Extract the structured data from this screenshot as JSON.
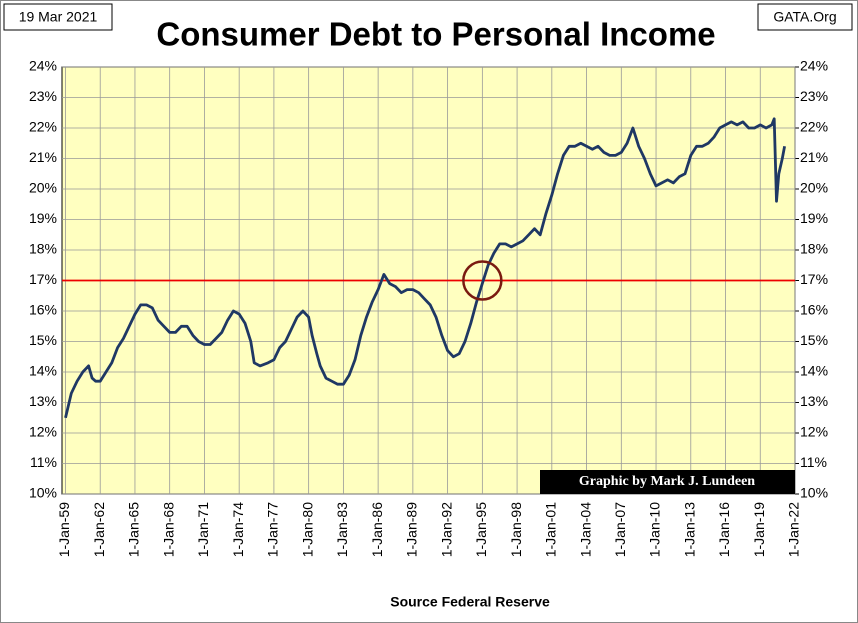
{
  "chart_data": {
    "type": "line",
    "title": "Consumer Debt to Personal Income",
    "date_label": "19 Mar 2021",
    "source_label": "GATA.Org",
    "x_label": "Source Federal Reserve",
    "credit": "Graphic by Mark J. Lundeen",
    "reference_line": {
      "y": 17,
      "color": "#ee0000"
    },
    "highlight_point": {
      "x": 1995,
      "y": 17,
      "color": "#7a1a10"
    },
    "background": "#ffffc0",
    "grid": true,
    "xlim": [
      1958.7,
      2022
    ],
    "xticks": [
      {
        "value": 1959,
        "label": "1-Jan-59"
      },
      {
        "value": 1962,
        "label": "1-Jan-62"
      },
      {
        "value": 1965,
        "label": "1-Jan-65"
      },
      {
        "value": 1968,
        "label": "1-Jan-68"
      },
      {
        "value": 1971,
        "label": "1-Jan-71"
      },
      {
        "value": 1974,
        "label": "1-Jan-74"
      },
      {
        "value": 1977,
        "label": "1-Jan-77"
      },
      {
        "value": 1980,
        "label": "1-Jan-80"
      },
      {
        "value": 1983,
        "label": "1-Jan-83"
      },
      {
        "value": 1986,
        "label": "1-Jan-86"
      },
      {
        "value": 1989,
        "label": "1-Jan-89"
      },
      {
        "value": 1992,
        "label": "1-Jan-92"
      },
      {
        "value": 1995,
        "label": "1-Jan-95"
      },
      {
        "value": 1998,
        "label": "1-Jan-98"
      },
      {
        "value": 2001,
        "label": "1-Jan-01"
      },
      {
        "value": 2004,
        "label": "1-Jan-04"
      },
      {
        "value": 2007,
        "label": "1-Jan-07"
      },
      {
        "value": 2010,
        "label": "1-Jan-10"
      },
      {
        "value": 2013,
        "label": "1-Jan-13"
      },
      {
        "value": 2016,
        "label": "1-Jan-16"
      },
      {
        "value": 2019,
        "label": "1-Jan-19"
      },
      {
        "value": 2022,
        "label": "1-Jan-22"
      }
    ],
    "ylim": [
      10,
      24
    ],
    "yticks": [
      {
        "value": 10,
        "label": "10%"
      },
      {
        "value": 11,
        "label": "11%"
      },
      {
        "value": 12,
        "label": "12%"
      },
      {
        "value": 13,
        "label": "13%"
      },
      {
        "value": 14,
        "label": "14%"
      },
      {
        "value": 15,
        "label": "15%"
      },
      {
        "value": 16,
        "label": "16%"
      },
      {
        "value": 17,
        "label": "17%"
      },
      {
        "value": 18,
        "label": "18%"
      },
      {
        "value": 19,
        "label": "19%"
      },
      {
        "value": 20,
        "label": "20%"
      },
      {
        "value": 21,
        "label": "21%"
      },
      {
        "value": 22,
        "label": "22%"
      },
      {
        "value": 23,
        "label": "23%"
      },
      {
        "value": 24,
        "label": "24%"
      }
    ],
    "y2lim": [
      10,
      24
    ],
    "y2ticks": [
      {
        "value": 10,
        "label": "10%"
      },
      {
        "value": 11,
        "label": "11%"
      },
      {
        "value": 12,
        "label": "12%"
      },
      {
        "value": 13,
        "label": "13%"
      },
      {
        "value": 14,
        "label": "14%"
      },
      {
        "value": 15,
        "label": "15%"
      },
      {
        "value": 16,
        "label": "16%"
      },
      {
        "value": 17,
        "label": "17%"
      },
      {
        "value": 18,
        "label": "18%"
      },
      {
        "value": 19,
        "label": "19%"
      },
      {
        "value": 20,
        "label": "20%"
      },
      {
        "value": 21,
        "label": "21%"
      },
      {
        "value": 22,
        "label": "22%"
      },
      {
        "value": 23,
        "label": "23%"
      },
      {
        "value": 24,
        "label": "24%"
      }
    ],
    "x": [
      1959,
      1959.5,
      1960,
      1960.5,
      1961,
      1961.3,
      1961.6,
      1962,
      1962.5,
      1963,
      1963.5,
      1964,
      1964.5,
      1965,
      1965.5,
      1966,
      1966.5,
      1967,
      1967.5,
      1968,
      1968.5,
      1969,
      1969.5,
      1970,
      1970.5,
      1971,
      1971.5,
      1972,
      1972.5,
      1973,
      1973.5,
      1974,
      1974.5,
      1975,
      1975.3,
      1975.8,
      1976.5,
      1977,
      1977.5,
      1978,
      1978.5,
      1979,
      1979.5,
      1980,
      1980.3,
      1980.7,
      1981,
      1981.5,
      1982,
      1982.5,
      1983,
      1983.5,
      1984,
      1984.5,
      1985,
      1985.5,
      1986,
      1986.5,
      1987,
      1987.5,
      1988,
      1988.5,
      1989,
      1989.5,
      1990,
      1990.5,
      1991,
      1991.5,
      1992,
      1992.5,
      1993,
      1993.5,
      1994,
      1994.5,
      1995,
      1995.5,
      1996,
      1996.5,
      1997,
      1997.5,
      1998,
      1998.5,
      1999,
      1999.5,
      2000,
      2000.5,
      2001,
      2001.5,
      2002,
      2002.5,
      2003,
      2003.5,
      2004,
      2004.5,
      2005,
      2005.5,
      2006,
      2006.5,
      2007,
      2007.5,
      2008,
      2008.5,
      2009,
      2009.5,
      2010,
      2010.5,
      2011,
      2011.5,
      2012,
      2012.5,
      2013,
      2013.5,
      2014,
      2014.5,
      2015,
      2015.5,
      2016,
      2016.5,
      2017,
      2017.5,
      2018,
      2018.5,
      2019,
      2019.5,
      2020,
      2020.2,
      2020.4,
      2020.6,
      2020.9,
      2021.1
    ],
    "series": [
      {
        "name": "Consumer Debt to Personal Income",
        "color": "#1f3864",
        "values": [
          12.5,
          13.3,
          13.7,
          14.0,
          14.2,
          13.8,
          13.7,
          13.7,
          14.0,
          14.3,
          14.8,
          15.1,
          15.5,
          15.9,
          16.2,
          16.2,
          16.1,
          15.7,
          15.5,
          15.3,
          15.3,
          15.5,
          15.5,
          15.2,
          15.0,
          14.9,
          14.9,
          15.1,
          15.3,
          15.7,
          16.0,
          15.9,
          15.6,
          15.0,
          14.3,
          14.2,
          14.3,
          14.4,
          14.8,
          15.0,
          15.4,
          15.8,
          16.0,
          15.8,
          15.2,
          14.6,
          14.2,
          13.8,
          13.7,
          13.6,
          13.6,
          13.9,
          14.4,
          15.2,
          15.8,
          16.3,
          16.7,
          17.2,
          16.9,
          16.8,
          16.6,
          16.7,
          16.7,
          16.6,
          16.4,
          16.2,
          15.8,
          15.2,
          14.7,
          14.5,
          14.6,
          15.0,
          15.6,
          16.3,
          16.9,
          17.5,
          17.9,
          18.2,
          18.2,
          18.1,
          18.2,
          18.3,
          18.5,
          18.7,
          18.5,
          19.2,
          19.8,
          20.5,
          21.1,
          21.4,
          21.4,
          21.5,
          21.4,
          21.3,
          21.4,
          21.2,
          21.1,
          21.1,
          21.2,
          21.5,
          22.0,
          21.4,
          21.0,
          20.5,
          20.1,
          20.2,
          20.3,
          20.2,
          20.4,
          20.5,
          21.1,
          21.4,
          21.4,
          21.5,
          21.7,
          22.0,
          22.1,
          22.2,
          22.1,
          22.2,
          22.0,
          22.0,
          22.1,
          22.0,
          22.1,
          22.3,
          19.6,
          20.5,
          21.0,
          21.4
        ]
      }
    ]
  }
}
